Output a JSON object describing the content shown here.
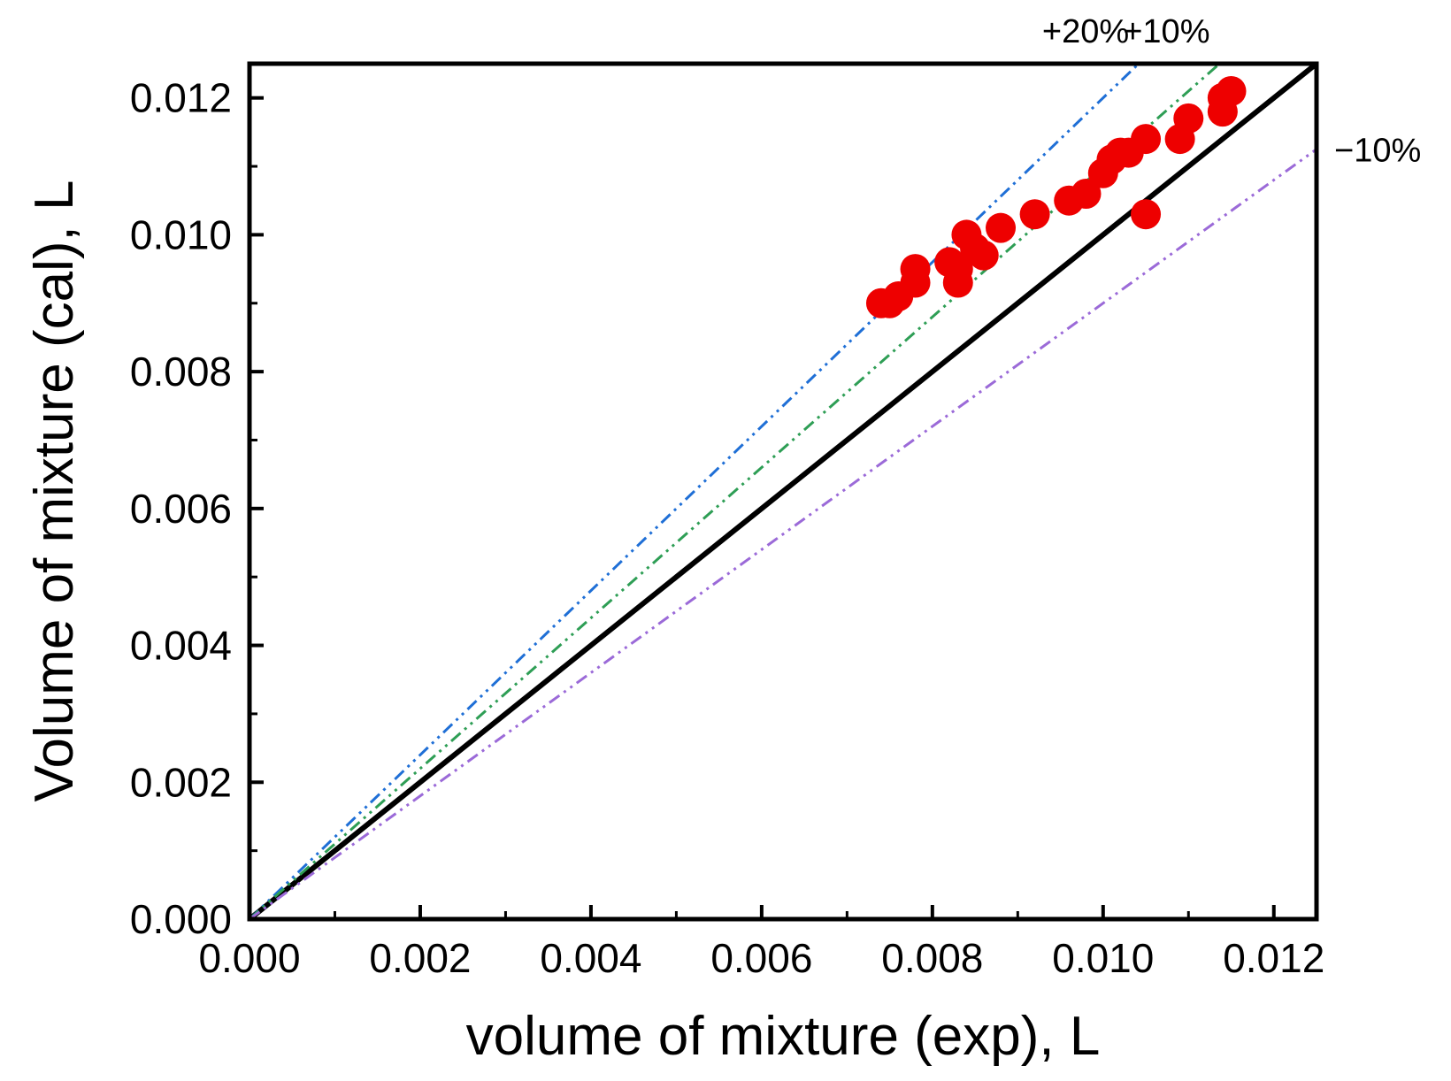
{
  "chart_data": {
    "type": "scatter",
    "xlabel": "volume of mixture (exp), L",
    "ylabel": "Volume of mixture (cal), L",
    "xlim": [
      0,
      0.0125
    ],
    "ylim": [
      0,
      0.0125
    ],
    "x_ticks": [
      "0.000",
      "0.002",
      "0.004",
      "0.006",
      "0.008",
      "0.010",
      "0.012"
    ],
    "y_ticks": [
      "0.000",
      "0.002",
      "0.004",
      "0.006",
      "0.008",
      "0.010",
      "0.012"
    ],
    "grid": false,
    "reference_lines": [
      {
        "label": "",
        "slope": 1.0,
        "color": "#000000",
        "style": "solid"
      },
      {
        "label": "+20%",
        "slope": 1.2,
        "color": "#1f6fd6",
        "style": "dash-dot-dot"
      },
      {
        "label": "+10%",
        "slope": 1.1,
        "color": "#2e9e55",
        "style": "dash-dot-dot"
      },
      {
        "label": "−10%",
        "slope": 0.9,
        "color": "#9b6ad8",
        "style": "dash-dot-dot"
      }
    ],
    "series": [
      {
        "color": "#ee0000",
        "points": [
          [
            0.0074,
            0.009
          ],
          [
            0.0075,
            0.009
          ],
          [
            0.0076,
            0.0091
          ],
          [
            0.0078,
            0.0093
          ],
          [
            0.0078,
            0.0095
          ],
          [
            0.0082,
            0.0096
          ],
          [
            0.0083,
            0.0093
          ],
          [
            0.0083,
            0.0095
          ],
          [
            0.0084,
            0.01
          ],
          [
            0.0085,
            0.0098
          ],
          [
            0.0086,
            0.0097
          ],
          [
            0.0088,
            0.0101
          ],
          [
            0.0092,
            0.0103
          ],
          [
            0.0096,
            0.0105
          ],
          [
            0.0098,
            0.0106
          ],
          [
            0.01,
            0.0109
          ],
          [
            0.0101,
            0.0111
          ],
          [
            0.0102,
            0.0112
          ],
          [
            0.0103,
            0.0112
          ],
          [
            0.0105,
            0.0114
          ],
          [
            0.0105,
            0.0103
          ],
          [
            0.0109,
            0.0114
          ],
          [
            0.011,
            0.0117
          ],
          [
            0.0114,
            0.0118
          ],
          [
            0.0114,
            0.012
          ],
          [
            0.0115,
            0.0121
          ]
        ]
      }
    ]
  }
}
